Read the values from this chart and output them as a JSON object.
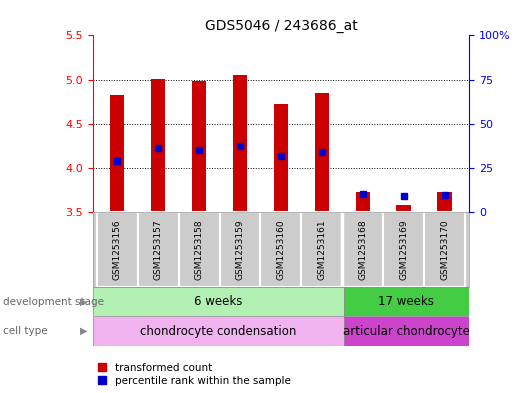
{
  "title": "GDS5046 / 243686_at",
  "samples": [
    "GSM1253156",
    "GSM1253157",
    "GSM1253158",
    "GSM1253159",
    "GSM1253160",
    "GSM1253161",
    "GSM1253168",
    "GSM1253169",
    "GSM1253170"
  ],
  "transformed_count": [
    4.82,
    5.01,
    4.98,
    5.05,
    4.72,
    4.85,
    3.73,
    3.58,
    3.73
  ],
  "percentile_rank": [
    4.08,
    4.23,
    4.2,
    4.25,
    4.14,
    4.18,
    3.71,
    3.68,
    3.69
  ],
  "ylim_left": [
    3.5,
    5.5
  ],
  "ylim_right": [
    0,
    100
  ],
  "yticks_left": [
    3.5,
    4.0,
    4.5,
    5.0,
    5.5
  ],
  "yticks_right": [
    0,
    25,
    50,
    75,
    100
  ],
  "bar_color": "#cc0000",
  "dot_color": "#0000cc",
  "background_color": "#ffffff",
  "group1_count": 6,
  "group2_count": 3,
  "dev_stage_6w": "6 weeks",
  "dev_stage_17w": "17 weeks",
  "cell_type_1": "chondrocyte condensation",
  "cell_type_2": "articular chondrocyte",
  "dev_stage_color_6w": "#b3f0b3",
  "dev_stage_color_17w": "#44cc44",
  "cell_type_color_1": "#f0b3f0",
  "cell_type_color_2": "#cc44cc",
  "legend_red": "transformed count",
  "legend_blue": "percentile rank within the sample",
  "bar_width": 0.35,
  "label_bg": "#cccccc",
  "dotted_gridlines": [
    4.0,
    4.5,
    5.0
  ]
}
